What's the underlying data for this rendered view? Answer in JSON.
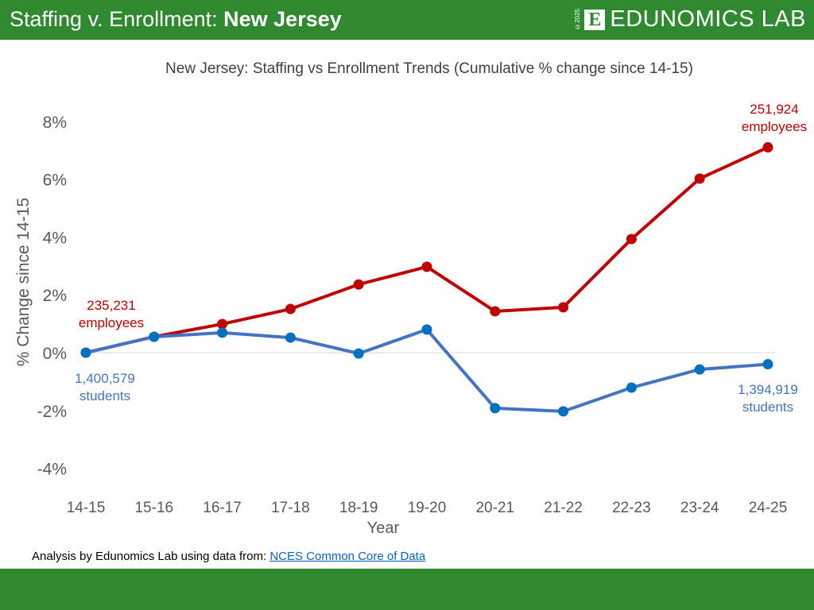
{
  "header": {
    "title_prefix": "Staffing v. Enrollment: ",
    "title_state": "New Jersey",
    "logo_text": "EDUNOMICS LAB",
    "logo_mark": "E",
    "copyright": "©2025"
  },
  "footer": {
    "source_prefix": "Analysis by Edunomics Lab using data from: ",
    "source_link": "NCES Common Core of Data"
  },
  "colors": {
    "brand_green": "#2f8a2f",
    "staff": "#c00000",
    "students_line": "#4472c4",
    "students_marker": "#0070c0"
  },
  "chart_data": {
    "type": "line",
    "title": "New Jersey: Staffing vs Enrollment Trends (Cumulative % change since 14-15)",
    "xlabel": "Year",
    "ylabel": "% Change since 14-15",
    "categories": [
      "14-15",
      "15-16",
      "16-17",
      "17-18",
      "18-19",
      "19-20",
      "20-21",
      "21-22",
      "22-23",
      "23-24",
      "24-25"
    ],
    "ylim": [
      -4,
      8
    ],
    "yticks": [
      "8%",
      "6%",
      "4%",
      "2%",
      "0%",
      "-2%",
      "-4%"
    ],
    "ytick_values": [
      8,
      6,
      4,
      2,
      0,
      -2,
      -4
    ],
    "series": [
      {
        "key": "staff",
        "values": [
          0,
          0.55,
          0.99,
          1.51,
          2.36,
          2.97,
          1.43,
          1.57,
          3.93,
          6.02,
          7.1
        ]
      },
      {
        "key": "students",
        "values": [
          0,
          0.55,
          0.69,
          0.52,
          -0.03,
          0.8,
          -1.92,
          -2.03,
          -1.21,
          -0.58,
          -0.4
        ]
      }
    ],
    "annotations": [
      {
        "series": "staff",
        "at": "14-15",
        "lines": [
          "235,231",
          "employees"
        ]
      },
      {
        "series": "staff",
        "at": "24-25",
        "lines": [
          "251,924",
          "employees"
        ]
      },
      {
        "series": "students",
        "at": "14-15",
        "lines": [
          "1,400,579",
          "students"
        ]
      },
      {
        "series": "students",
        "at": "24-25",
        "lines": [
          "1,394,919",
          "students"
        ]
      }
    ],
    "grid": false,
    "zero_line": true,
    "legend": "none"
  }
}
